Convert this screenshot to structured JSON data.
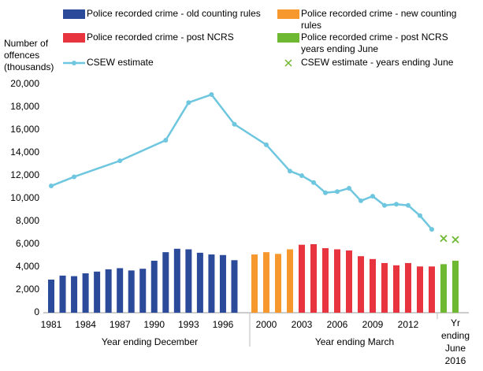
{
  "chart_data": {
    "type": "bar",
    "y_axis_label": "Number of offences (thousands)",
    "annotations": [
      "Year ending December",
      "Year ending March"
    ],
    "ylim": [
      0,
      20000
    ],
    "yticks": [
      {
        "value": 0,
        "label": "0"
      },
      {
        "value": 2000,
        "label": "2,000"
      },
      {
        "value": 4000,
        "label": "4,000"
      },
      {
        "value": 6000,
        "label": "6,000"
      },
      {
        "value": 8000,
        "label": "8,000"
      },
      {
        "value": 10000,
        "label": "10,000"
      },
      {
        "value": 12000,
        "label": "12,000"
      },
      {
        "value": 14000,
        "label": "14,000"
      },
      {
        "value": 16000,
        "label": "16,000"
      },
      {
        "value": 18000,
        "label": "18,000"
      },
      {
        "value": 20000,
        "label": "20,000"
      }
    ],
    "xticks": [
      1981,
      1984,
      1987,
      1990,
      1993,
      1996,
      2000,
      2003,
      2006,
      2009,
      2012,
      {
        "value": 2016,
        "label": "Yr ending June 2016"
      }
    ],
    "series": [
      {
        "name": "Police recorded crime - old counting rules",
        "type": "bar",
        "color": "#2c4a9a",
        "x": [
          1981,
          1982,
          1983,
          1984,
          1985,
          1986,
          1987,
          1988,
          1989,
          1990,
          1991,
          1992,
          1993,
          1994,
          1995,
          1996,
          1997
        ],
        "values": [
          2900,
          3250,
          3200,
          3450,
          3600,
          3800,
          3900,
          3700,
          3850,
          4550,
          5300,
          5600,
          5550,
          5250,
          5100,
          5050,
          4600
        ]
      },
      {
        "name": "Police recorded crime - new counting rules",
        "type": "bar",
        "color": "#f7982f",
        "x": [
          1999,
          2000,
          2001,
          2002
        ],
        "values": [
          5100,
          5300,
          5150,
          5550
        ]
      },
      {
        "name": "Police recorded crime - post NCRS",
        "type": "bar",
        "color": "#e8343e",
        "x": [
          2003,
          2004,
          2005,
          2006,
          2007,
          2008,
          2009,
          2010,
          2011,
          2012,
          2013,
          2014
        ],
        "values": [
          5950,
          6000,
          5650,
          5550,
          5450,
          4950,
          4700,
          4350,
          4150,
          4350,
          4050,
          4050
        ]
      },
      {
        "name": "Police recorded crime - post NCRS years ending June",
        "type": "bar",
        "color": "#6fb832",
        "x": [
          2015,
          2016
        ],
        "values": [
          4250,
          4550
        ]
      },
      {
        "name": "CSEW estimate",
        "type": "line",
        "color": "#6ec6df",
        "x": [
          1981,
          1983,
          1987,
          1991,
          1993,
          1995,
          1997,
          2000,
          2002,
          2003,
          2004,
          2005,
          2006,
          2007,
          2008,
          2009,
          2010,
          2011,
          2012,
          2013,
          2014
        ],
        "values": [
          11100,
          11900,
          13300,
          15100,
          18400,
          19100,
          16500,
          14700,
          12400,
          12000,
          11400,
          10500,
          10600,
          10900,
          9800,
          10200,
          9400,
          9500,
          9400,
          8500,
          7300
        ]
      },
      {
        "name": "CSEW estimate - years ending June",
        "type": "marker",
        "color": "#6fb832",
        "x": [
          2015,
          2016
        ],
        "values": [
          6500,
          6400
        ]
      }
    ]
  }
}
